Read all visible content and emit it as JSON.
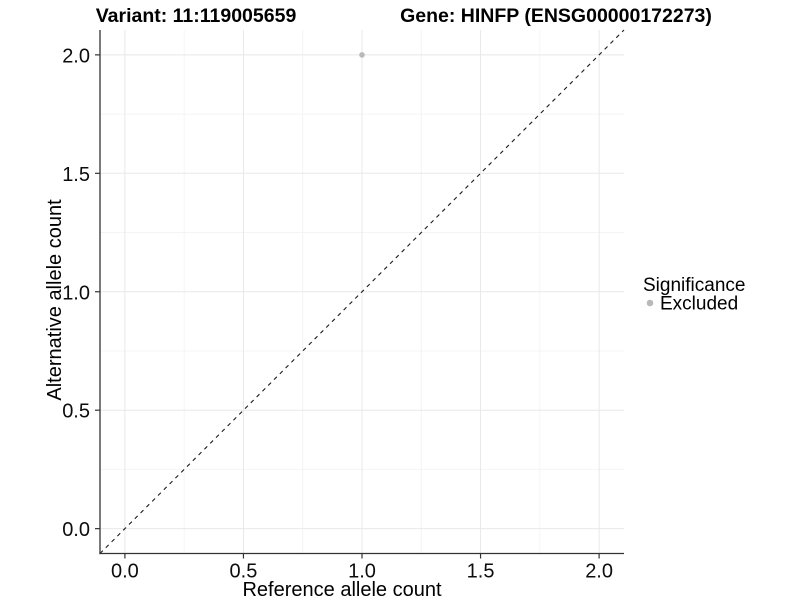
{
  "chart_data": {
    "type": "scatter",
    "titles": {
      "left": "Variant: 11:119005659",
      "right": "Gene: HINFP (ENSG00000172273)"
    },
    "xlabel": "Reference allele count",
    "ylabel": "Alternative allele count",
    "xlim": [
      -0.105,
      2.105
    ],
    "ylim": [
      -0.105,
      2.105
    ],
    "xticks": {
      "values": [
        0.0,
        0.5,
        1.0,
        1.5,
        2.0
      ],
      "labels": [
        "0.0",
        "0.5",
        "1.0",
        "1.5",
        "2.0"
      ]
    },
    "yticks": {
      "values": [
        0.0,
        0.5,
        1.0,
        1.5,
        2.0
      ],
      "labels": [
        "0.0",
        "0.5",
        "1.0",
        "1.5",
        "2.0"
      ]
    },
    "minor_ticks": [
      0.25,
      0.75,
      1.25,
      1.75
    ],
    "grid": "major+minor",
    "series": [
      {
        "name": "Excluded",
        "color": "#b9b9b9",
        "points": [
          {
            "x": 1.0,
            "y": 2.0
          }
        ]
      }
    ],
    "reference_line": {
      "kind": "identity",
      "from": [
        -0.105,
        -0.105
      ],
      "to": [
        2.105,
        2.105
      ],
      "style": "dashed",
      "color": "#1a1a1a"
    },
    "legend": {
      "title": "Significance",
      "position": "right",
      "entries": [
        {
          "label": "Excluded",
          "color": "#b9b9b9"
        }
      ]
    }
  },
  "colors": {
    "background": "#ffffff",
    "grid_major": "#e8e8e8",
    "grid_minor": "#f4f4f4",
    "axis_line": "#333333",
    "tick_mark": "#333333",
    "point": "#b9b9b9"
  }
}
